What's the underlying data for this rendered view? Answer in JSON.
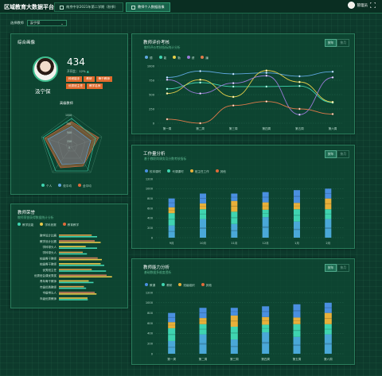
{
  "header": {
    "title": "区域教育大数据平台",
    "tabs": [
      {
        "label": "南京中学2021年第二学期（秋季）"
      },
      {
        "label": "教师个人数据画像"
      }
    ],
    "user": "管理员"
  },
  "school_select": {
    "label": "选择教师",
    "value": "汲宁保"
  },
  "profile": {
    "title": "综合画像",
    "score": "434",
    "rank_label": "开同比：",
    "rank_value": "12%",
    "name": "汲宁保",
    "tags": [
      "科研能手",
      "教研",
      "骨干教师",
      "优秀班主任",
      "教学名师"
    ],
    "radar_title": "高级教师",
    "radar_axes": [
      "",
      "",
      "",
      "",
      ""
    ],
    "radar_ticks": [
      "1000",
      "750",
      "500",
      "250",
      "0"
    ],
    "radar_legend": [
      "个人",
      "校平均",
      "全平均"
    ]
  },
  "honor": {
    "title": "教师荣誉",
    "subtitle": "教师荣誉获得数据统计分析",
    "legend": [
      "教学技能",
      "学科竞赛",
      "教育教学"
    ],
    "rows": [
      {
        "label": "教学设计比赛",
        "v": [
          0.55,
          0.2,
          0
        ]
      },
      {
        "label": "教学设计比赛",
        "v": [
          0.6,
          0.22,
          0
        ]
      },
      {
        "label": "学科带头人",
        "v": [
          0.45,
          0.28,
          0
        ]
      },
      {
        "label": "学科带头人",
        "v": [
          0.4,
          0.15,
          0
        ]
      },
      {
        "label": "校级骨干教师",
        "v": [
          0.65,
          0.2,
          0
        ]
      },
      {
        "label": "校级骨干教师",
        "v": [
          0.7,
          0.2,
          0
        ]
      },
      {
        "label": "优秀班主任",
        "v": [
          0.55,
          0.35,
          0
        ]
      },
      {
        "label": "优秀班会课优秀奖",
        "v": [
          0.8,
          0.25,
          0
        ]
      },
      {
        "label": "青年骨干教师",
        "v": [
          0.5,
          0.18,
          0
        ]
      },
      {
        "label": "市级优秀教师",
        "v": [
          0.42,
          0.12,
          0
        ]
      },
      {
        "label": "市级带头人",
        "v": [
          0.6,
          0.15,
          0
        ]
      },
      {
        "label": "市级优秀教师",
        "v": [
          0.48,
          0.1,
          0
        ]
      }
    ]
  },
  "eval": {
    "title": "教师评价考核",
    "subtitle": "教师评价考核指标统计分析",
    "btns": [
      "按年",
      "按月"
    ],
    "legend": [
      "德",
      "能",
      "勤",
      "绩",
      "廉"
    ],
    "yticks": [
      "1000",
      "750",
      "500",
      "250",
      "0"
    ],
    "x": [
      "第一周",
      "第二周",
      "第三周",
      "第四周",
      "第五周",
      "第六周"
    ],
    "series": [
      {
        "name": "德",
        "color": "#5fa8e0",
        "values": [
          800,
          910,
          860,
          880,
          820,
          900
        ]
      },
      {
        "name": "能",
        "color": "#3fd4b0",
        "values": [
          600,
          710,
          640,
          640,
          650,
          360
        ]
      },
      {
        "name": "勤",
        "color": "#e8d04a",
        "values": [
          520,
          760,
          460,
          920,
          720,
          370
        ]
      },
      {
        "name": "绩",
        "color": "#9a7bd8",
        "values": [
          760,
          520,
          700,
          830,
          150,
          800
        ]
      },
      {
        "name": "廉",
        "color": "#e07a4a",
        "values": [
          70,
          0,
          310,
          380,
          250,
          160
        ]
      }
    ]
  },
  "work": {
    "title": "工作量分析",
    "subtitle": "基于教职岗课务及分数考核指标",
    "btns": [
      "按年",
      "按月"
    ],
    "legend": [
      "校本课时",
      "代课课时",
      "班主任工作",
      "其他"
    ],
    "yticks": [
      "1200",
      "1000",
      "800",
      "600",
      "400",
      "200",
      "0"
    ],
    "x": [
      "9月",
      "10月",
      "11月",
      "12月",
      "1月",
      "2月"
    ]
  },
  "ability": {
    "title": "教师能力分析",
    "subtitle": "基础数据多维度透析",
    "btns": [
      "按年",
      "按月"
    ],
    "legend": [
      "教课",
      "教研",
      "班级组织",
      "其他"
    ],
    "yticks": [
      "1200",
      "1000",
      "800",
      "600",
      "400",
      "200",
      "0"
    ],
    "x": [
      "第一周",
      "第二周",
      "第三周",
      "第四周",
      "第五周",
      "第六周"
    ]
  },
  "chart_data": [
    {
      "type": "line",
      "title": "教师评价考核",
      "categories": [
        "第一周",
        "第二周",
        "第三周",
        "第四周",
        "第五周",
        "第六周"
      ],
      "ylim": [
        0,
        1000
      ],
      "series": [
        {
          "name": "德",
          "values": [
            800,
            910,
            860,
            880,
            820,
            900
          ]
        },
        {
          "name": "能",
          "values": [
            600,
            710,
            640,
            640,
            650,
            360
          ]
        },
        {
          "name": "勤",
          "values": [
            520,
            760,
            460,
            920,
            720,
            370
          ]
        },
        {
          "name": "绩",
          "values": [
            760,
            520,
            700,
            830,
            150,
            800
          ]
        },
        {
          "name": "廉",
          "values": [
            70,
            0,
            310,
            380,
            250,
            160
          ]
        }
      ]
    },
    {
      "type": "bar",
      "title": "工作量分析",
      "categories": [
        "9月",
        "10月",
        "11月",
        "12月",
        "1月",
        "2月"
      ],
      "ylim": [
        0,
        1200
      ],
      "series": [
        {
          "name": "校本课时",
          "values": [
            250,
            380,
            280,
            420,
            330,
            380
          ]
        },
        {
          "name": "代课课时",
          "values": [
            250,
            200,
            250,
            150,
            250,
            200
          ]
        },
        {
          "name": "班主任工作",
          "values": [
            120,
            120,
            220,
            150,
            130,
            220
          ]
        },
        {
          "name": "其他",
          "values": [
            180,
            200,
            150,
            210,
            260,
            200
          ]
        }
      ]
    },
    {
      "type": "bar",
      "title": "教师能力分析",
      "categories": [
        "第一周",
        "第二周",
        "第三周",
        "第四周",
        "第五周",
        "第六周"
      ],
      "ylim": [
        0,
        1200
      ],
      "series": [
        {
          "name": "教课",
          "values": [
            250,
            380,
            280,
            420,
            330,
            380
          ]
        },
        {
          "name": "教研",
          "values": [
            250,
            200,
            250,
            150,
            250,
            200
          ]
        },
        {
          "name": "班级组织",
          "values": [
            120,
            120,
            220,
            150,
            130,
            220
          ]
        },
        {
          "name": "其他",
          "values": [
            180,
            200,
            150,
            210,
            260,
            200
          ]
        }
      ]
    }
  ],
  "colors": {
    "c1": "#4a8fe0",
    "c2": "#3fd4b0",
    "c3": "#e8b03a",
    "c4": "#e06a3a",
    "c5": "#5fa8e0"
  }
}
